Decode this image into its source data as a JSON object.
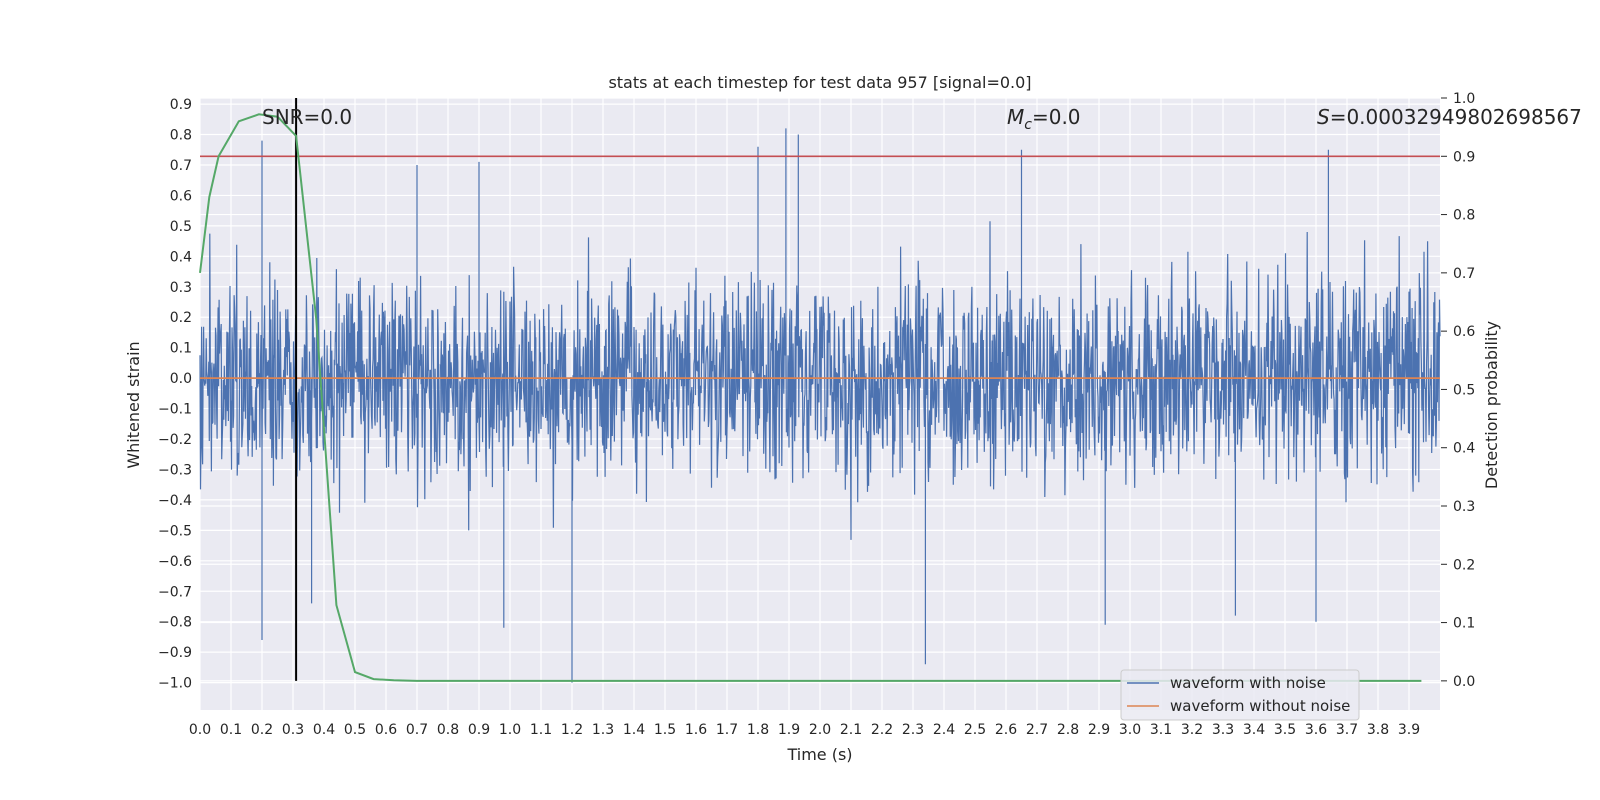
{
  "chart_data": {
    "type": "line",
    "title": "stats at each timestep for test data 957 [signal=0.0]",
    "xlabel": "Time (s)",
    "ylabel": "Whitened strain",
    "y2label": "Detection probability",
    "xlim": [
      0.0,
      4.0
    ],
    "ylim": [
      -1.09,
      0.92
    ],
    "y2lim": [
      -0.05,
      1.0
    ],
    "x_ticks": [
      0.0,
      0.1,
      0.2,
      0.3,
      0.4,
      0.5,
      0.6,
      0.7,
      0.8,
      0.9,
      1.0,
      1.1,
      1.2,
      1.3,
      1.4,
      1.5,
      1.6,
      1.7,
      1.8,
      1.9,
      2.0,
      2.1,
      2.2,
      2.3,
      2.4,
      2.5,
      2.6,
      2.7,
      2.8,
      2.9,
      3.0,
      3.1,
      3.2,
      3.3,
      3.4,
      3.5,
      3.6,
      3.7,
      3.8,
      3.9
    ],
    "x_tick_labels": [
      "0.0",
      "0.1",
      "0.2",
      "0.3",
      "0.4",
      "0.5",
      "0.6",
      "0.7",
      "0.8",
      "0.9",
      "1.0",
      "1.1",
      "1.2",
      "1.3",
      "1.4",
      "1.5",
      "1.6",
      "1.7",
      "1.8",
      "1.9",
      "2.0",
      "2.1",
      "2.2",
      "2.3",
      "2.4",
      "2.5",
      "2.6",
      "2.7",
      "2.8",
      "2.9",
      "3.0",
      "3.1",
      "3.2",
      "3.3",
      "3.4",
      "3.5",
      "3.6",
      "3.7",
      "3.8",
      "3.9"
    ],
    "y_ticks": [
      0.9,
      0.8,
      0.7,
      0.6,
      0.5,
      0.4,
      0.3,
      0.2,
      0.1,
      0.0,
      -0.1,
      -0.2,
      -0.3,
      -0.4,
      -0.5,
      -0.6,
      -0.7,
      -0.8,
      -0.9,
      -1.0
    ],
    "y_tick_labels": [
      "0.9",
      "0.8",
      "0.7",
      "0.6",
      "0.5",
      "0.4",
      "0.3",
      "0.2",
      "0.1",
      "0.0",
      "−0.1",
      "−0.2",
      "−0.3",
      "−0.4",
      "−0.5",
      "−0.6",
      "−0.7",
      "−0.8",
      "−0.9",
      "−1.0"
    ],
    "y2_ticks": [
      1.0,
      0.9,
      0.8,
      0.7,
      0.6,
      0.5,
      0.4,
      0.3,
      0.2,
      0.1,
      0.0
    ],
    "y2_tick_labels": [
      "1.0",
      "0.9",
      "0.8",
      "0.7",
      "0.6",
      "0.5",
      "0.4",
      "0.3",
      "0.2",
      "0.1",
      "0.0"
    ],
    "series": [
      {
        "name": "waveform with noise",
        "color": "#4c72b0",
        "kind": "noise",
        "x_range": [
          0.0,
          4.0
        ],
        "approx_amplitude": 0.3,
        "peaks": [
          {
            "x": 0.2,
            "y": 0.78
          },
          {
            "x": 0.2,
            "y": -0.86
          },
          {
            "x": 0.36,
            "y": -0.74
          },
          {
            "x": 0.7,
            "y": 0.7
          },
          {
            "x": 0.9,
            "y": 0.71
          },
          {
            "x": 0.98,
            "y": -0.82
          },
          {
            "x": 1.2,
            "y": -1.0
          },
          {
            "x": 1.8,
            "y": 0.76
          },
          {
            "x": 1.89,
            "y": 0.82
          },
          {
            "x": 1.93,
            "y": 0.8
          },
          {
            "x": 2.34,
            "y": -0.94
          },
          {
            "x": 2.65,
            "y": 0.75
          },
          {
            "x": 2.92,
            "y": -0.81
          },
          {
            "x": 3.34,
            "y": -0.78
          },
          {
            "x": 3.64,
            "y": 0.75
          },
          {
            "x": 3.6,
            "y": -0.8
          }
        ]
      },
      {
        "name": "waveform without noise",
        "color": "#dd8452",
        "x": [
          0.0,
          4.0
        ],
        "y": [
          0.0,
          0.0
        ]
      },
      {
        "name": "detection probability",
        "axis": "right",
        "color": "#55a868",
        "x": [
          0.0,
          0.03,
          0.06,
          0.125,
          0.19,
          0.25,
          0.31,
          0.375,
          0.44,
          0.5,
          0.56,
          0.625,
          0.7,
          1.0,
          2.0,
          3.0,
          3.94
        ],
        "y": [
          0.7,
          0.83,
          0.9,
          0.96,
          0.972,
          0.968,
          0.935,
          0.62,
          0.13,
          0.015,
          0.003,
          0.001,
          0.0,
          0.0,
          0.0,
          0.0,
          0.0
        ]
      }
    ],
    "threshold": {
      "axis": "right",
      "value": 0.9,
      "color": "#c44e52"
    },
    "vline": {
      "x": 0.31,
      "color": "#000000"
    },
    "annotations": [
      {
        "text": "SNR=0.0",
        "x": 0.2
      },
      {
        "text_prefix": "M",
        "text_sub": "c",
        "text_suffix": "=0.0",
        "x": 2.6
      },
      {
        "text_prefix": "S",
        "text_suffix": "=0.00032949802698567",
        "x": 3.6
      }
    ],
    "legend": {
      "location": "bottom-right",
      "entries": [
        {
          "label": "waveform with noise",
          "color": "#4c72b0"
        },
        {
          "label": "waveform without noise",
          "color": "#dd8452"
        }
      ]
    },
    "grid": true
  }
}
